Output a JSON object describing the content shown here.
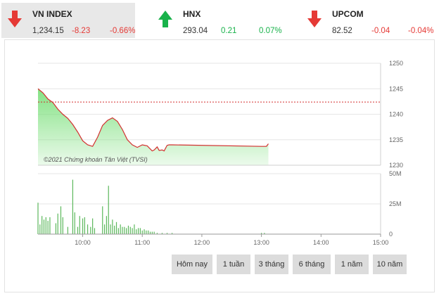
{
  "indices": [
    {
      "name": "VN INDEX",
      "value": "1,234.15",
      "change": "-8.23",
      "percent": "-0.66%",
      "direction": "down",
      "active": true
    },
    {
      "name": "HNX",
      "value": "293.04",
      "change": "0.21",
      "percent": "0.07%",
      "direction": "up",
      "active": false
    },
    {
      "name": "UPCOM",
      "value": "82.52",
      "change": "-0.04",
      "percent": "-0.04%",
      "direction": "down",
      "active": false
    }
  ],
  "colors": {
    "down": "#e53935",
    "up": "#18b24a",
    "line": "#d32f2f",
    "area": "#7ee07e",
    "volume": "#5cb85c",
    "reference": "#d32f2f"
  },
  "chart_data": [
    {
      "type": "area",
      "watermark": "©2021 Chứng khoán Tân Việt (TVSI)",
      "ylim": [
        1230,
        1250
      ],
      "yticks": [
        "1250",
        "1245",
        "1240",
        "1235",
        "1230"
      ],
      "reference_value": 1242.4,
      "series": [
        {
          "x": [
            "09:15",
            "09:20",
            "09:25",
            "09:30",
            "09:35",
            "09:40",
            "09:45",
            "09:50",
            "09:55",
            "10:00",
            "10:05",
            "10:10",
            "10:15",
            "10:20",
            "10:25",
            "10:30",
            "10:35",
            "10:40",
            "10:45",
            "10:50",
            "10:55",
            "11:00",
            "11:05",
            "11:10",
            "11:12",
            "11:15",
            "11:17",
            "11:20",
            "11:22",
            "11:25",
            "11:27",
            "11:30",
            "13:00",
            "13:05",
            "13:07"
          ],
          "y": [
            1245.0,
            1244.2,
            1243.0,
            1242.3,
            1241.0,
            1240.0,
            1239.2,
            1238.0,
            1236.5,
            1234.8,
            1234.0,
            1233.7,
            1235.5,
            1237.8,
            1238.8,
            1239.3,
            1238.6,
            1237.0,
            1235.0,
            1234.0,
            1233.5,
            1234.0,
            1233.8,
            1232.8,
            1233.0,
            1233.6,
            1232.9,
            1233.0,
            1232.8,
            1233.9,
            1234.0,
            1234.0,
            1233.7,
            1233.7,
            1234.2
          ]
        }
      ]
    },
    {
      "type": "bar",
      "ylim": [
        0,
        50
      ],
      "yticks": [
        "50M",
        "25M",
        "0"
      ],
      "xticks": [
        "10:00",
        "11:00",
        "12:00",
        "13:00",
        "14:00",
        "15:00"
      ],
      "series": [
        {
          "x": [
            "09:15",
            "09:17",
            "09:19",
            "09:21",
            "09:23",
            "09:25",
            "09:27",
            "09:33",
            "09:35",
            "09:38",
            "09:40",
            "09:45",
            "09:50",
            "09:52",
            "09:55",
            "09:57",
            "10:00",
            "10:02",
            "10:05",
            "10:08",
            "10:10",
            "10:12",
            "10:20",
            "10:22",
            "10:24",
            "10:26",
            "10:28",
            "10:30",
            "10:32",
            "10:34",
            "10:36",
            "10:38",
            "10:40",
            "10:42",
            "10:44",
            "10:46",
            "10:48",
            "10:50",
            "10:52",
            "10:54",
            "10:56",
            "10:58",
            "11:00",
            "11:02",
            "11:04",
            "11:06",
            "11:08",
            "11:10",
            "11:12",
            "11:15",
            "11:20",
            "11:25",
            "11:30",
            "13:00",
            "13:03"
          ],
          "y": [
            26,
            8,
            15,
            12,
            14,
            11,
            14,
            9,
            17,
            23,
            14,
            6,
            45,
            18,
            6,
            15,
            13,
            14,
            8,
            6,
            13,
            5,
            23,
            8,
            15,
            40,
            8,
            12,
            7,
            10,
            5,
            8,
            6,
            6,
            5,
            7,
            6,
            5,
            8,
            4,
            5,
            5,
            3,
            4,
            3,
            3,
            2,
            2,
            2,
            1,
            1,
            1,
            1,
            1,
            1
          ]
        }
      ]
    }
  ],
  "ranges": [
    {
      "label": "Hôm nay"
    },
    {
      "label": "1 tuần"
    },
    {
      "label": "3 tháng"
    },
    {
      "label": "6 tháng"
    },
    {
      "label": "1 năm"
    },
    {
      "label": "10 năm"
    }
  ]
}
